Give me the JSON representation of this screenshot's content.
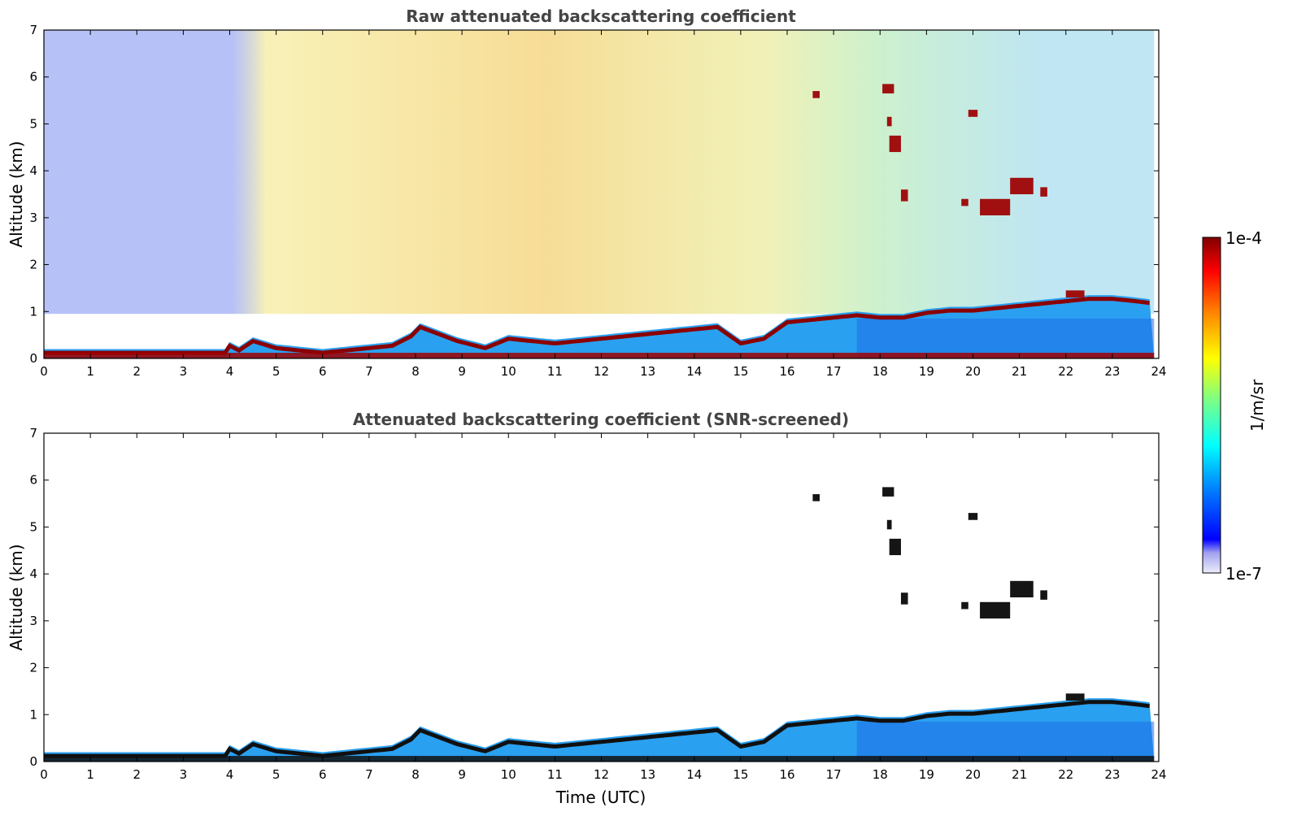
{
  "chart_data": [
    {
      "type": "heatmap",
      "title": "Raw attenuated backscattering coefficient",
      "xlabel": "",
      "ylabel": "Altitude (km)",
      "xlim": [
        0,
        24
      ],
      "ylim": [
        0,
        7
      ],
      "x_ticks": [
        "0",
        "1",
        "2",
        "3",
        "4",
        "5",
        "6",
        "7",
        "8",
        "9",
        "10",
        "11",
        "12",
        "13",
        "14",
        "15",
        "16",
        "17",
        "18",
        "19",
        "20",
        "21",
        "22",
        "23",
        "24"
      ],
      "y_ticks": [
        "0",
        "1",
        "2",
        "3",
        "4",
        "5",
        "6",
        "7"
      ],
      "screened": false,
      "boundary_layer_top_km": [
        [
          0,
          0.2
        ],
        [
          3.9,
          0.2
        ],
        [
          4.0,
          0.35
        ],
        [
          4.2,
          0.25
        ],
        [
          4.5,
          0.45
        ],
        [
          5.0,
          0.3
        ],
        [
          6.0,
          0.2
        ],
        [
          6.5,
          0.25
        ],
        [
          7.0,
          0.3
        ],
        [
          7.5,
          0.35
        ],
        [
          7.9,
          0.55
        ],
        [
          8.1,
          0.75
        ],
        [
          8.5,
          0.6
        ],
        [
          8.9,
          0.45
        ],
        [
          9.5,
          0.3
        ],
        [
          10.0,
          0.5
        ],
        [
          10.5,
          0.45
        ],
        [
          11.0,
          0.4
        ],
        [
          11.5,
          0.45
        ],
        [
          12.0,
          0.5
        ],
        [
          12.5,
          0.55
        ],
        [
          13.0,
          0.6
        ],
        [
          13.5,
          0.65
        ],
        [
          14.0,
          0.7
        ],
        [
          14.5,
          0.75
        ],
        [
          15.0,
          0.4
        ],
        [
          15.5,
          0.5
        ],
        [
          16.0,
          0.85
        ],
        [
          16.5,
          0.9
        ],
        [
          17.0,
          0.95
        ],
        [
          17.5,
          1.0
        ],
        [
          18.0,
          0.95
        ],
        [
          18.5,
          0.95
        ],
        [
          19.0,
          1.05
        ],
        [
          19.5,
          1.1
        ],
        [
          20.0,
          1.1
        ],
        [
          20.5,
          1.15
        ],
        [
          21.0,
          1.2
        ],
        [
          21.5,
          1.25
        ],
        [
          22.0,
          1.3
        ],
        [
          22.5,
          1.35
        ],
        [
          23.0,
          1.35
        ],
        [
          23.5,
          1.3
        ],
        [
          23.9,
          1.25
        ]
      ],
      "cloud_features_km": [
        {
          "x": [
            16.55,
            16.7
          ],
          "y": [
            5.55,
            5.7
          ]
        },
        {
          "x": [
            18.05,
            18.3
          ],
          "y": [
            5.65,
            5.85
          ]
        },
        {
          "x": [
            18.15,
            18.25
          ],
          "y": [
            4.95,
            5.15
          ]
        },
        {
          "x": [
            18.2,
            18.45
          ],
          "y": [
            4.4,
            4.75
          ]
        },
        {
          "x": [
            18.45,
            18.6
          ],
          "y": [
            3.35,
            3.6
          ]
        },
        {
          "x": [
            19.75,
            19.9
          ],
          "y": [
            3.25,
            3.4
          ]
        },
        {
          "x": [
            19.9,
            20.1
          ],
          "y": [
            5.15,
            5.3
          ]
        },
        {
          "x": [
            20.15,
            20.8
          ],
          "y": [
            3.05,
            3.4
          ]
        },
        {
          "x": [
            20.8,
            21.3
          ],
          "y": [
            3.5,
            3.85
          ]
        },
        {
          "x": [
            21.45,
            21.6
          ],
          "y": [
            3.45,
            3.65
          ]
        },
        {
          "x": [
            22.0,
            22.4
          ],
          "y": [
            1.3,
            1.45
          ]
        }
      ]
    },
    {
      "type": "heatmap",
      "title": "Attenuated backscattering coefficient (SNR-screened)",
      "xlabel": "Time (UTC)",
      "ylabel": "Altitude (km)",
      "xlim": [
        0,
        24
      ],
      "ylim": [
        0,
        7
      ],
      "x_ticks": [
        "0",
        "1",
        "2",
        "3",
        "4",
        "5",
        "6",
        "7",
        "8",
        "9",
        "10",
        "11",
        "12",
        "13",
        "14",
        "15",
        "16",
        "17",
        "18",
        "19",
        "20",
        "21",
        "22",
        "23",
        "24"
      ],
      "y_ticks": [
        "0",
        "1",
        "2",
        "3",
        "4",
        "5",
        "6",
        "7"
      ],
      "screened": true
    }
  ],
  "colorbar": {
    "label": "1/m/sr",
    "max_label": "1e-4",
    "min_label": "1e-7",
    "scale": "log",
    "colormap": "jet",
    "colors": [
      "#ececfa",
      "#c8c8f5",
      "#a0a0f0",
      "#0000ff",
      "#0040ff",
      "#0080ff",
      "#00c0ff",
      "#00ffff",
      "#40ffc0",
      "#80ff80",
      "#c0ff40",
      "#ffff00",
      "#ffc000",
      "#ff8000",
      "#ff4000",
      "#ff0000",
      "#c00000",
      "#800000"
    ]
  }
}
